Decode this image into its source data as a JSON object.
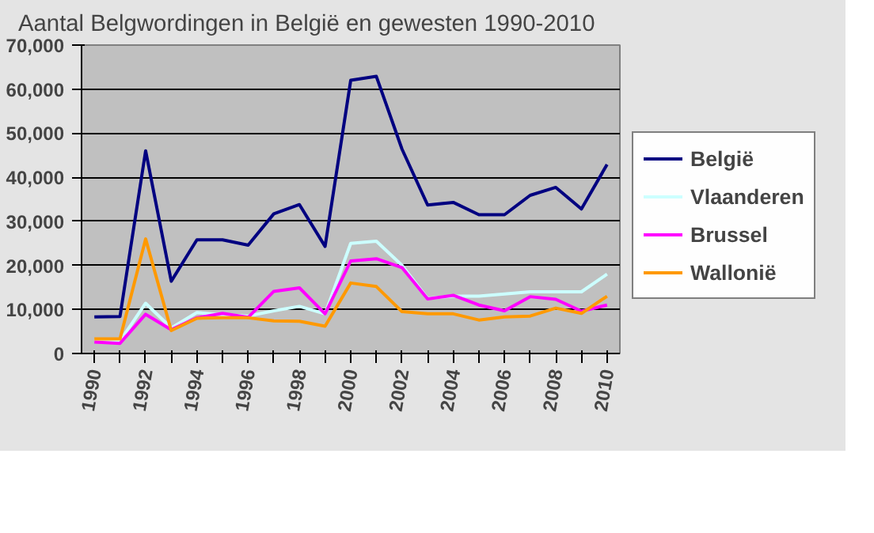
{
  "chart_data": {
    "type": "line",
    "title": "Aantal Belgwordingen in België en gewesten 1990-2010",
    "categories": [
      "1990",
      null,
      "1992",
      null,
      "1994",
      null,
      "1996",
      null,
      "1998",
      null,
      "2000",
      null,
      "2002",
      null,
      "2004",
      null,
      "2006",
      null,
      "2008",
      null,
      "2010"
    ],
    "series": [
      {
        "name": "België",
        "color": "#000080",
        "values": [
          8300,
          8400,
          46000,
          16400,
          25800,
          25800,
          24600,
          31700,
          33800,
          24300,
          62000,
          62900,
          46400,
          33700,
          34300,
          31500,
          31500,
          35900,
          37700,
          32800,
          42900
        ]
      },
      {
        "name": "Vlaanderen",
        "color": "#ccffff",
        "values": [
          3000,
          2800,
          11400,
          5800,
          9300,
          8800,
          8500,
          9700,
          10700,
          9000,
          25000,
          25500,
          20000,
          12500,
          13000,
          13000,
          13500,
          14000,
          14000,
          14000,
          18000
        ]
      },
      {
        "name": "Brussel",
        "color": "#ff00ff",
        "values": [
          2600,
          2300,
          8900,
          5400,
          8100,
          9100,
          8200,
          14100,
          14900,
          9000,
          21000,
          21500,
          19500,
          12400,
          13200,
          11000,
          9700,
          12900,
          12300,
          9600,
          11000
        ]
      },
      {
        "name": "Wallonië",
        "color": "#ff9900",
        "values": [
          3300,
          3300,
          26000,
          5200,
          8000,
          8100,
          8100,
          7400,
          7300,
          6200,
          16000,
          15200,
          9500,
          9000,
          9000,
          7600,
          8300,
          8500,
          10300,
          9100,
          13000
        ]
      }
    ],
    "ylim": [
      0,
      70000
    ],
    "yticks": [
      {
        "value": 0,
        "label": "0"
      },
      {
        "value": 10000,
        "label": "10,000"
      },
      {
        "value": 20000,
        "label": "20,000"
      },
      {
        "value": 30000,
        "label": "30,000"
      },
      {
        "value": 40000,
        "label": "40,000"
      },
      {
        "value": 50000,
        "label": "50,000"
      },
      {
        "value": 60000,
        "label": "60,000"
      },
      {
        "value": 70000,
        "label": "70,000"
      }
    ],
    "grid": "y",
    "legend": "right",
    "marker": "none",
    "line_style": "solid"
  }
}
